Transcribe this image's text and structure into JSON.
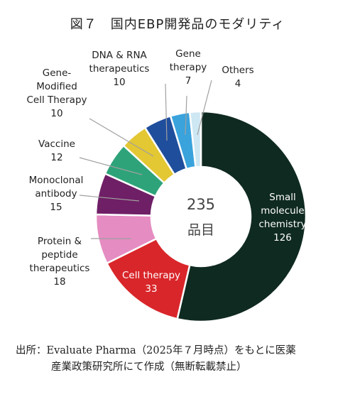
{
  "chart_data": {
    "type": "pie",
    "title": "図７　国内EBP開発品のモダリティ",
    "center_total": "235",
    "center_unit": "品目",
    "slices": [
      {
        "label": "Small molecule chemistry",
        "lines": [
          "Small",
          "molecule",
          "chemistry"
        ],
        "value": 126,
        "color": "#0f2a20"
      },
      {
        "label": "Cell therapy",
        "lines": [
          "Cell therapy"
        ],
        "value": 33,
        "color": "#d9262a"
      },
      {
        "label": "Protein & peptide therapeutics",
        "lines": [
          "Protein &",
          "peptide",
          "therapeutics"
        ],
        "value": 18,
        "color": "#e58cc2"
      },
      {
        "label": "Monoclonal antibody",
        "lines": [
          "Monoclonal",
          "antibody"
        ],
        "value": 15,
        "color": "#6f1f66"
      },
      {
        "label": "Vaccine",
        "lines": [
          "Vaccine"
        ],
        "value": 12,
        "color": "#2ea37a"
      },
      {
        "label": "Gene-Modified Cell Therapy",
        "lines": [
          "Gene-",
          "Modified",
          "Cell Therapy"
        ],
        "value": 10,
        "color": "#e3c733"
      },
      {
        "label": "DNA & RNA therapeutics",
        "lines": [
          "DNA & RNA",
          "therapeutics"
        ],
        "value": 10,
        "color": "#1f4e9c"
      },
      {
        "label": "Gene therapy",
        "lines": [
          "Gene",
          "therapy"
        ],
        "value": 7,
        "color": "#3aa3dc"
      },
      {
        "label": "Others",
        "lines": [
          "Others"
        ],
        "value": 4,
        "color": "#cde7f3"
      }
    ]
  },
  "source": {
    "line1": "出所：Evaluate Pharma（2025年７月時点）をもとに医薬",
    "line2": "産業政策研究所にて作成（無断転載禁止）"
  }
}
